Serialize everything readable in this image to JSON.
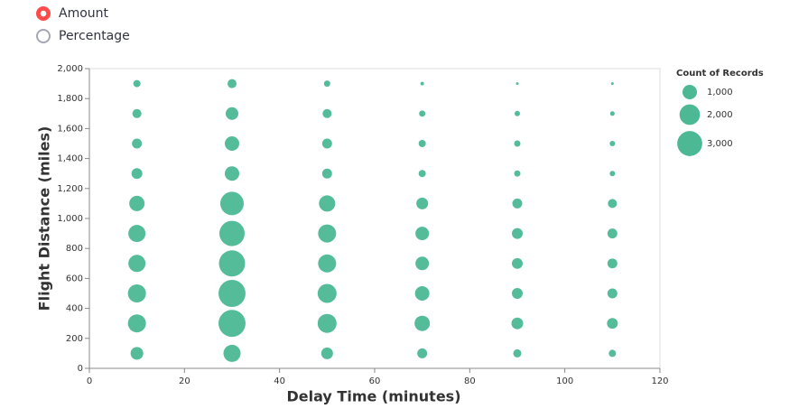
{
  "radio": {
    "options": [
      "Amount",
      "Percentage"
    ],
    "selected": 0
  },
  "chart_data": {
    "type": "scatter",
    "color": "#4cb894",
    "x_label": "Delay Time (minutes)",
    "y_label": "Flight Distance (miles)",
    "xlim": [
      0,
      120
    ],
    "xticks": [
      0,
      20,
      40,
      60,
      80,
      100,
      120
    ],
    "ylim": [
      0,
      2000
    ],
    "yticks": [
      0,
      200,
      400,
      600,
      800,
      {
        "value": 1000,
        "label": "1,000"
      },
      {
        "value": 1200,
        "label": "1,200"
      },
      {
        "value": 1400,
        "label": "1,400"
      },
      {
        "value": 1600,
        "label": "1,600"
      },
      {
        "value": 1800,
        "label": "1,800"
      },
      {
        "value": 2000,
        "label": "2,000"
      }
    ],
    "grid": false,
    "x": [
      10,
      10,
      10,
      10,
      10,
      10,
      10,
      10,
      10,
      10,
      30,
      30,
      30,
      30,
      30,
      30,
      30,
      30,
      30,
      30,
      50,
      50,
      50,
      50,
      50,
      50,
      50,
      50,
      50,
      50,
      70,
      70,
      70,
      70,
      70,
      70,
      70,
      70,
      70,
      70,
      90,
      90,
      90,
      90,
      90,
      90,
      90,
      90,
      90,
      90,
      110,
      110,
      110,
      110,
      110,
      110,
      110,
      110,
      110,
      110
    ],
    "y": [
      100,
      300,
      500,
      700,
      900,
      1100,
      1300,
      1500,
      1700,
      1900,
      100,
      300,
      500,
      700,
      900,
      1100,
      1300,
      1500,
      1700,
      1900,
      100,
      300,
      500,
      700,
      900,
      1100,
      1300,
      1500,
      1700,
      1900,
      100,
      300,
      500,
      700,
      900,
      1100,
      1300,
      1500,
      1700,
      1900,
      100,
      300,
      500,
      700,
      900,
      1100,
      1300,
      1500,
      1700,
      1900,
      100,
      300,
      500,
      700,
      900,
      1100,
      1300,
      1500,
      1700,
      1900
    ],
    "size": [
      770,
      1560,
      1560,
      1410,
      1410,
      1130,
      560,
      470,
      390,
      250,
      1410,
      3500,
      3500,
      3280,
      3060,
      2640,
      1000,
      1000,
      770,
      390,
      660,
      1720,
      1720,
      1560,
      1560,
      1270,
      470,
      470,
      390,
      190,
      470,
      1130,
      1000,
      880,
      880,
      660,
      250,
      250,
      190,
      60,
      320,
      660,
      560,
      560,
      560,
      470,
      190,
      190,
      140,
      35,
      250,
      560,
      470,
      470,
      470,
      390,
      140,
      140,
      100,
      35
    ],
    "size_legend": {
      "title": "Count of Records",
      "values": [
        {
          "value": 1000,
          "label": "1,000"
        },
        {
          "value": 2000,
          "label": "2,000"
        },
        {
          "value": 3000,
          "label": "3,000"
        }
      ]
    }
  }
}
